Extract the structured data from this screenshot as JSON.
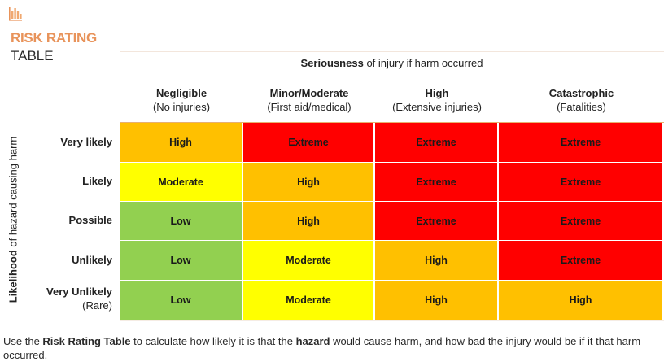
{
  "header": {
    "icon": "bar-chart-icon",
    "title_line1": "RISK RATING",
    "title_line2": "TABLE",
    "accent_color": "#e8935a"
  },
  "column_axis": {
    "title_bold": "Seriousness",
    "title_rest": " of injury if harm occurred",
    "columns": [
      {
        "label": "Negligible",
        "sub": "(No injuries)"
      },
      {
        "label": "Minor/Moderate",
        "sub": "(First aid/medical)"
      },
      {
        "label": "High",
        "sub": "(Extensive injuries)"
      },
      {
        "label": "Catastrophic",
        "sub": "(Fatalities)"
      }
    ]
  },
  "row_axis": {
    "title_bold": "Likelihood",
    "title_rest": " of hazard causing harm",
    "rows": [
      {
        "label": "Very likely",
        "sub": ""
      },
      {
        "label": "Likely",
        "sub": ""
      },
      {
        "label": "Possible",
        "sub": ""
      },
      {
        "label": "Unlikely",
        "sub": ""
      },
      {
        "label": "Very Unlikely",
        "sub": "(Rare)"
      }
    ]
  },
  "rating_colors": {
    "Low": "#92d050",
    "Moderate": "#ffff00",
    "High": "#ffc000",
    "Extreme": "#ff0000"
  },
  "matrix": [
    [
      "High",
      "Extreme",
      "Extreme",
      "Extreme"
    ],
    [
      "Moderate",
      "High",
      "Extreme",
      "Extreme"
    ],
    [
      "Low",
      "High",
      "Extreme",
      "Extreme"
    ],
    [
      "Low",
      "Moderate",
      "High",
      "Extreme"
    ],
    [
      "Low",
      "Moderate",
      "High",
      "High"
    ]
  ],
  "footer": {
    "part1": "Use the ",
    "bold1": "Risk Rating Table",
    "part2": " to calculate how likely it is that the ",
    "bold2": "hazard",
    "part3": " would cause harm, and how bad the injury would be if it that harm occurred."
  }
}
